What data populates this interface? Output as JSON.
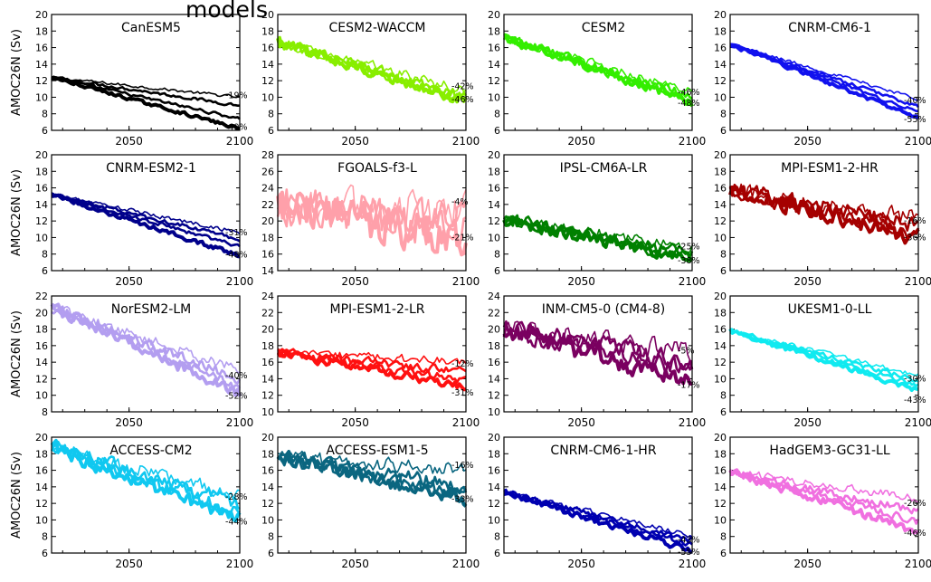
{
  "page": {
    "title": "models",
    "ylabel": "AMOC26N (Sv)"
  },
  "chart_data": [
    {
      "type": "line",
      "title": "CanESM5",
      "color": "#000000",
      "xlim": [
        2015,
        2100
      ],
      "ylim": [
        6,
        20
      ],
      "yticks": [
        6,
        8,
        10,
        12,
        14,
        16,
        18,
        20
      ],
      "xticks": [
        2050,
        2100
      ],
      "start": 12.4,
      "ends": [
        10.0,
        9.0,
        7.4,
        6.2
      ],
      "noise": 0.25,
      "bold_index": 3,
      "labels": [
        {
          "text": "-19%",
          "y": 10.2
        },
        {
          "text": "-49%",
          "y": 6.4
        }
      ]
    },
    {
      "type": "line",
      "title": "CESM2-WACCM",
      "color": "#88ee00",
      "xlim": [
        2015,
        2100
      ],
      "ylim": [
        6,
        20
      ],
      "yticks": [
        6,
        8,
        10,
        12,
        14,
        16,
        18,
        20
      ],
      "xticks": [
        2050,
        2100
      ],
      "start": 16.6,
      "ends": [
        10.8,
        10.2,
        9.8,
        9.4
      ],
      "noise": 0.9,
      "bold_index": 3,
      "labels": [
        {
          "text": "-42%",
          "y": 11.3
        },
        {
          "text": "-46%",
          "y": 9.7
        }
      ]
    },
    {
      "type": "line",
      "title": "CESM2",
      "color": "#33ee00",
      "xlim": [
        2015,
        2100
      ],
      "ylim": [
        6,
        20
      ],
      "yticks": [
        6,
        8,
        10,
        12,
        14,
        16,
        18,
        20
      ],
      "xticks": [
        2050,
        2100
      ],
      "start": 17.2,
      "ends": [
        10.6,
        10.0,
        9.7,
        9.4
      ],
      "noise": 0.75,
      "bold_index": 3,
      "labels": [
        {
          "text": "-46%",
          "y": 10.6
        },
        {
          "text": "-48%",
          "y": 9.3
        }
      ]
    },
    {
      "type": "line",
      "title": "CNRM-CM6-1",
      "color": "#1111ee",
      "xlim": [
        2015,
        2100
      ],
      "ylim": [
        6,
        20
      ],
      "yticks": [
        6,
        8,
        10,
        12,
        14,
        16,
        18,
        20
      ],
      "xticks": [
        2050,
        2100
      ],
      "start": 16.4,
      "ends": [
        9.8,
        8.9,
        8.2,
        7.5
      ],
      "noise": 0.3,
      "bold_index": 3,
      "labels": [
        {
          "text": "-40%",
          "y": 9.6
        },
        {
          "text": "-55%",
          "y": 7.3
        }
      ]
    },
    {
      "type": "line",
      "title": "CNRM-ESM2-1",
      "color": "#00008b",
      "xlim": [
        2015,
        2100
      ],
      "ylim": [
        6,
        20
      ],
      "yticks": [
        6,
        8,
        10,
        12,
        14,
        16,
        18,
        20
      ],
      "xticks": [
        2050,
        2100
      ],
      "start": 15.2,
      "ends": [
        10.6,
        9.8,
        9.0,
        7.8
      ],
      "noise": 0.35,
      "bold_index": 3,
      "labels": [
        {
          "text": "-31%",
          "y": 10.6
        },
        {
          "text": "-48%",
          "y": 7.9
        }
      ]
    },
    {
      "type": "line",
      "title": "FGOALS-f3-L",
      "color": "#ffa0aa",
      "xlim": [
        2015,
        2100
      ],
      "ylim": [
        14,
        28
      ],
      "yticks": [
        14,
        16,
        18,
        20,
        22,
        24,
        26,
        28
      ],
      "xticks": [
        2050,
        2100
      ],
      "start": 22.0,
      "ends": [
        21.2,
        19.8,
        18.5,
        17.6
      ],
      "noise": 3.2,
      "bold_index": 3,
      "labels": [
        {
          "text": "-4%",
          "y": 22.3
        },
        {
          "text": "-21%",
          "y": 18.0
        }
      ]
    },
    {
      "type": "line",
      "title": "IPSL-CM6A-LR",
      "color": "#008000",
      "xlim": [
        2015,
        2100
      ],
      "ylim": [
        6,
        20
      ],
      "yticks": [
        6,
        8,
        10,
        12,
        14,
        16,
        18,
        20
      ],
      "xticks": [
        2050,
        2100
      ],
      "start": 12.2,
      "ends": [
        8.8,
        8.0,
        7.6,
        7.2
      ],
      "noise": 1.0,
      "bold_index": 3,
      "labels": [
        {
          "text": "-25%",
          "y": 8.9
        },
        {
          "text": "-38%",
          "y": 7.2
        }
      ]
    },
    {
      "type": "line",
      "title": "MPI-ESM1-2-HR",
      "color": "#a50000",
      "xlim": [
        2015,
        2100
      ],
      "ylim": [
        6,
        20
      ],
      "yticks": [
        6,
        8,
        10,
        12,
        14,
        16,
        18,
        20
      ],
      "xticks": [
        2050,
        2100
      ],
      "start": 15.8,
      "ends": [
        12.4,
        11.4,
        10.6,
        10.0
      ],
      "noise": 1.4,
      "bold_index": 3,
      "labels": [
        {
          "text": "-16%",
          "y": 12.0
        },
        {
          "text": "-36%",
          "y": 10.0
        }
      ]
    },
    {
      "type": "line",
      "title": "NorESM2-LM",
      "color": "#b39ef0",
      "xlim": [
        2015,
        2100
      ],
      "ylim": [
        8,
        22
      ],
      "yticks": [
        8,
        10,
        12,
        14,
        16,
        18,
        20,
        22
      ],
      "xticks": [
        2050,
        2100
      ],
      "start": 20.6,
      "ends": [
        13.0,
        12.0,
        11.0,
        10.2
      ],
      "noise": 0.9,
      "bold_index": 3,
      "labels": [
        {
          "text": "-40%",
          "y": 12.4
        },
        {
          "text": "-52%",
          "y": 9.9
        }
      ]
    },
    {
      "type": "line",
      "title": "MPI-ESM1-2-LR",
      "color": "#ff1010",
      "xlim": [
        2015,
        2100
      ],
      "ylim": [
        10,
        24
      ],
      "yticks": [
        10,
        12,
        14,
        16,
        18,
        20,
        22,
        24
      ],
      "xticks": [
        2050,
        2100
      ],
      "start": 17.2,
      "ends": [
        16.0,
        14.8,
        13.8,
        13.0
      ],
      "noise": 0.7,
      "bold_index": 3,
      "labels": [
        {
          "text": "-12%",
          "y": 15.8
        },
        {
          "text": "-31%",
          "y": 12.3
        }
      ]
    },
    {
      "type": "line",
      "title": "INM-CM5-0 (CM4-8)",
      "color": "#7a0060",
      "xlim": [
        2015,
        2100
      ],
      "ylim": [
        10,
        24
      ],
      "yticks": [
        10,
        12,
        14,
        16,
        18,
        20,
        22,
        24
      ],
      "xticks": [
        2050,
        2100
      ],
      "start": 20.0,
      "ends": [
        17.4,
        16.0,
        15.0,
        13.4
      ],
      "noise": 1.6,
      "bold_index": 3,
      "labels": [
        {
          "text": "-5%",
          "y": 17.4
        },
        {
          "text": "-17%",
          "y": 13.2
        }
      ]
    },
    {
      "type": "line",
      "title": "UKESM1-0-LL",
      "color": "#10eaf0",
      "xlim": [
        2015,
        2100
      ],
      "ylim": [
        6,
        20
      ],
      "yticks": [
        6,
        8,
        10,
        12,
        14,
        16,
        18,
        20
      ],
      "xticks": [
        2050,
        2100
      ],
      "start": 15.8,
      "ends": [
        10.4,
        9.8,
        9.2,
        8.6
      ],
      "noise": 0.4,
      "bold_index": 3,
      "labels": [
        {
          "text": "-30%",
          "y": 10.0
        },
        {
          "text": "-43%",
          "y": 7.4
        }
      ]
    },
    {
      "type": "line",
      "title": "ACCESS-CM2",
      "color": "#10c8f0",
      "xlim": [
        2015,
        2100
      ],
      "ylim": [
        6,
        20
      ],
      "yticks": [
        6,
        8,
        10,
        12,
        14,
        16,
        18,
        20
      ],
      "xticks": [
        2050,
        2100
      ],
      "start": 18.8,
      "ends": [
        13.0,
        12.0,
        11.0,
        10.2
      ],
      "noise": 1.2,
      "bold_index": 3,
      "labels": [
        {
          "text": "-28%",
          "y": 12.8
        },
        {
          "text": "-44%",
          "y": 9.8
        }
      ]
    },
    {
      "type": "line",
      "title": "ACCESS-ESM1-5",
      "color": "#0a6680",
      "xlim": [
        2015,
        2100
      ],
      "ylim": [
        6,
        20
      ],
      "yticks": [
        6,
        8,
        10,
        12,
        14,
        16,
        18,
        20
      ],
      "xticks": [
        2050,
        2100
      ],
      "start": 17.6,
      "ends": [
        16.0,
        14.0,
        13.0,
        12.6
      ],
      "noise": 1.2,
      "bold_index": 3,
      "labels": [
        {
          "text": "-16%",
          "y": 16.6
        },
        {
          "text": "-33%",
          "y": 12.5
        }
      ]
    },
    {
      "type": "line",
      "title": "CNRM-CM6-1-HR",
      "color": "#0000b0",
      "xlim": [
        2015,
        2100
      ],
      "ylim": [
        6,
        20
      ],
      "yticks": [
        6,
        8,
        10,
        12,
        14,
        16,
        18,
        20
      ],
      "xticks": [
        2050,
        2100
      ],
      "start": 13.4,
      "ends": [
        8.0,
        7.4,
        7.0,
        6.2
      ],
      "noise": 0.5,
      "bold_index": 3,
      "labels": [
        {
          "text": "-43%",
          "y": 7.6
        },
        {
          "text": "-55%",
          "y": 6.1
        }
      ]
    },
    {
      "type": "line",
      "title": "HadGEM3-GC31-LL",
      "color": "#f070e0",
      "xlim": [
        2015,
        2100
      ],
      "ylim": [
        6,
        20
      ],
      "yticks": [
        6,
        8,
        10,
        12,
        14,
        16,
        18,
        20
      ],
      "xticks": [
        2050,
        2100
      ],
      "start": 15.8,
      "ends": [
        12.6,
        11.0,
        9.8,
        8.6
      ],
      "noise": 0.7,
      "bold_index": 3,
      "labels": [
        {
          "text": "-26%",
          "y": 12.0
        },
        {
          "text": "-46%",
          "y": 8.4
        }
      ]
    }
  ]
}
